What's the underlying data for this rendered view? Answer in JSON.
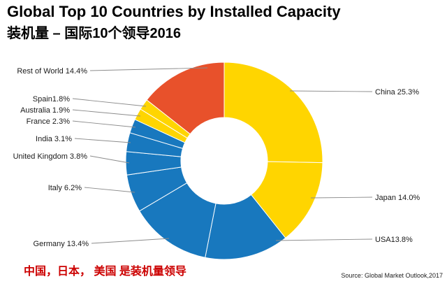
{
  "title": {
    "line1": "Global Top 10 Countries by Installed Capacity",
    "line2": "装机量 – 国际10个领导2016"
  },
  "footer": {
    "note": "中国，日本， 美国 是装机量领导",
    "source": "Source: Global Market Outlook,2017"
  },
  "colors": {
    "yellow": "#FFD500",
    "blue": "#1878BE",
    "orange": "#E8512B",
    "note_red": "#CC0000",
    "leader_line": "#8c8c8c",
    "label_text": "#1a1a1a"
  },
  "chart_data": {
    "type": "pie",
    "donut": true,
    "title": "Global Top 10 Countries by Installed Capacity 2016",
    "unit": "percent of global installed capacity",
    "start_angle_deg": 0,
    "direction": "clockwise",
    "total": 100.0,
    "slices": [
      {
        "label": "China",
        "value": 25.3,
        "display": "China 25.3%",
        "color": "#FFD500"
      },
      {
        "label": "Japan",
        "value": 14.0,
        "display": "Japan 14.0%",
        "color": "#FFD500"
      },
      {
        "label": "USA",
        "value": 13.8,
        "display": "USA13.8%",
        "color": "#1878BE"
      },
      {
        "label": "Germany",
        "value": 13.4,
        "display": "Germany 13.4%",
        "color": "#1878BE"
      },
      {
        "label": "Italy",
        "value": 6.2,
        "display": "Italy 6.2%",
        "color": "#1878BE"
      },
      {
        "label": "United Kingdom",
        "value": 3.8,
        "display": "United Kingdom 3.8%",
        "color": "#1878BE"
      },
      {
        "label": "India",
        "value": 3.1,
        "display": "India 3.1%",
        "color": "#1878BE"
      },
      {
        "label": "France",
        "value": 2.3,
        "display": "France 2.3%",
        "color": "#1878BE"
      },
      {
        "label": "Australia",
        "value": 1.9,
        "display": "Australia 1.9%",
        "color": "#FFD500"
      },
      {
        "label": "Spain",
        "value": 1.8,
        "display": "Spain1.8%",
        "color": "#FFD500"
      },
      {
        "label": "Rest of World",
        "value": 14.4,
        "display": "Rest of World 14.4%",
        "color": "#E8512B"
      }
    ]
  }
}
